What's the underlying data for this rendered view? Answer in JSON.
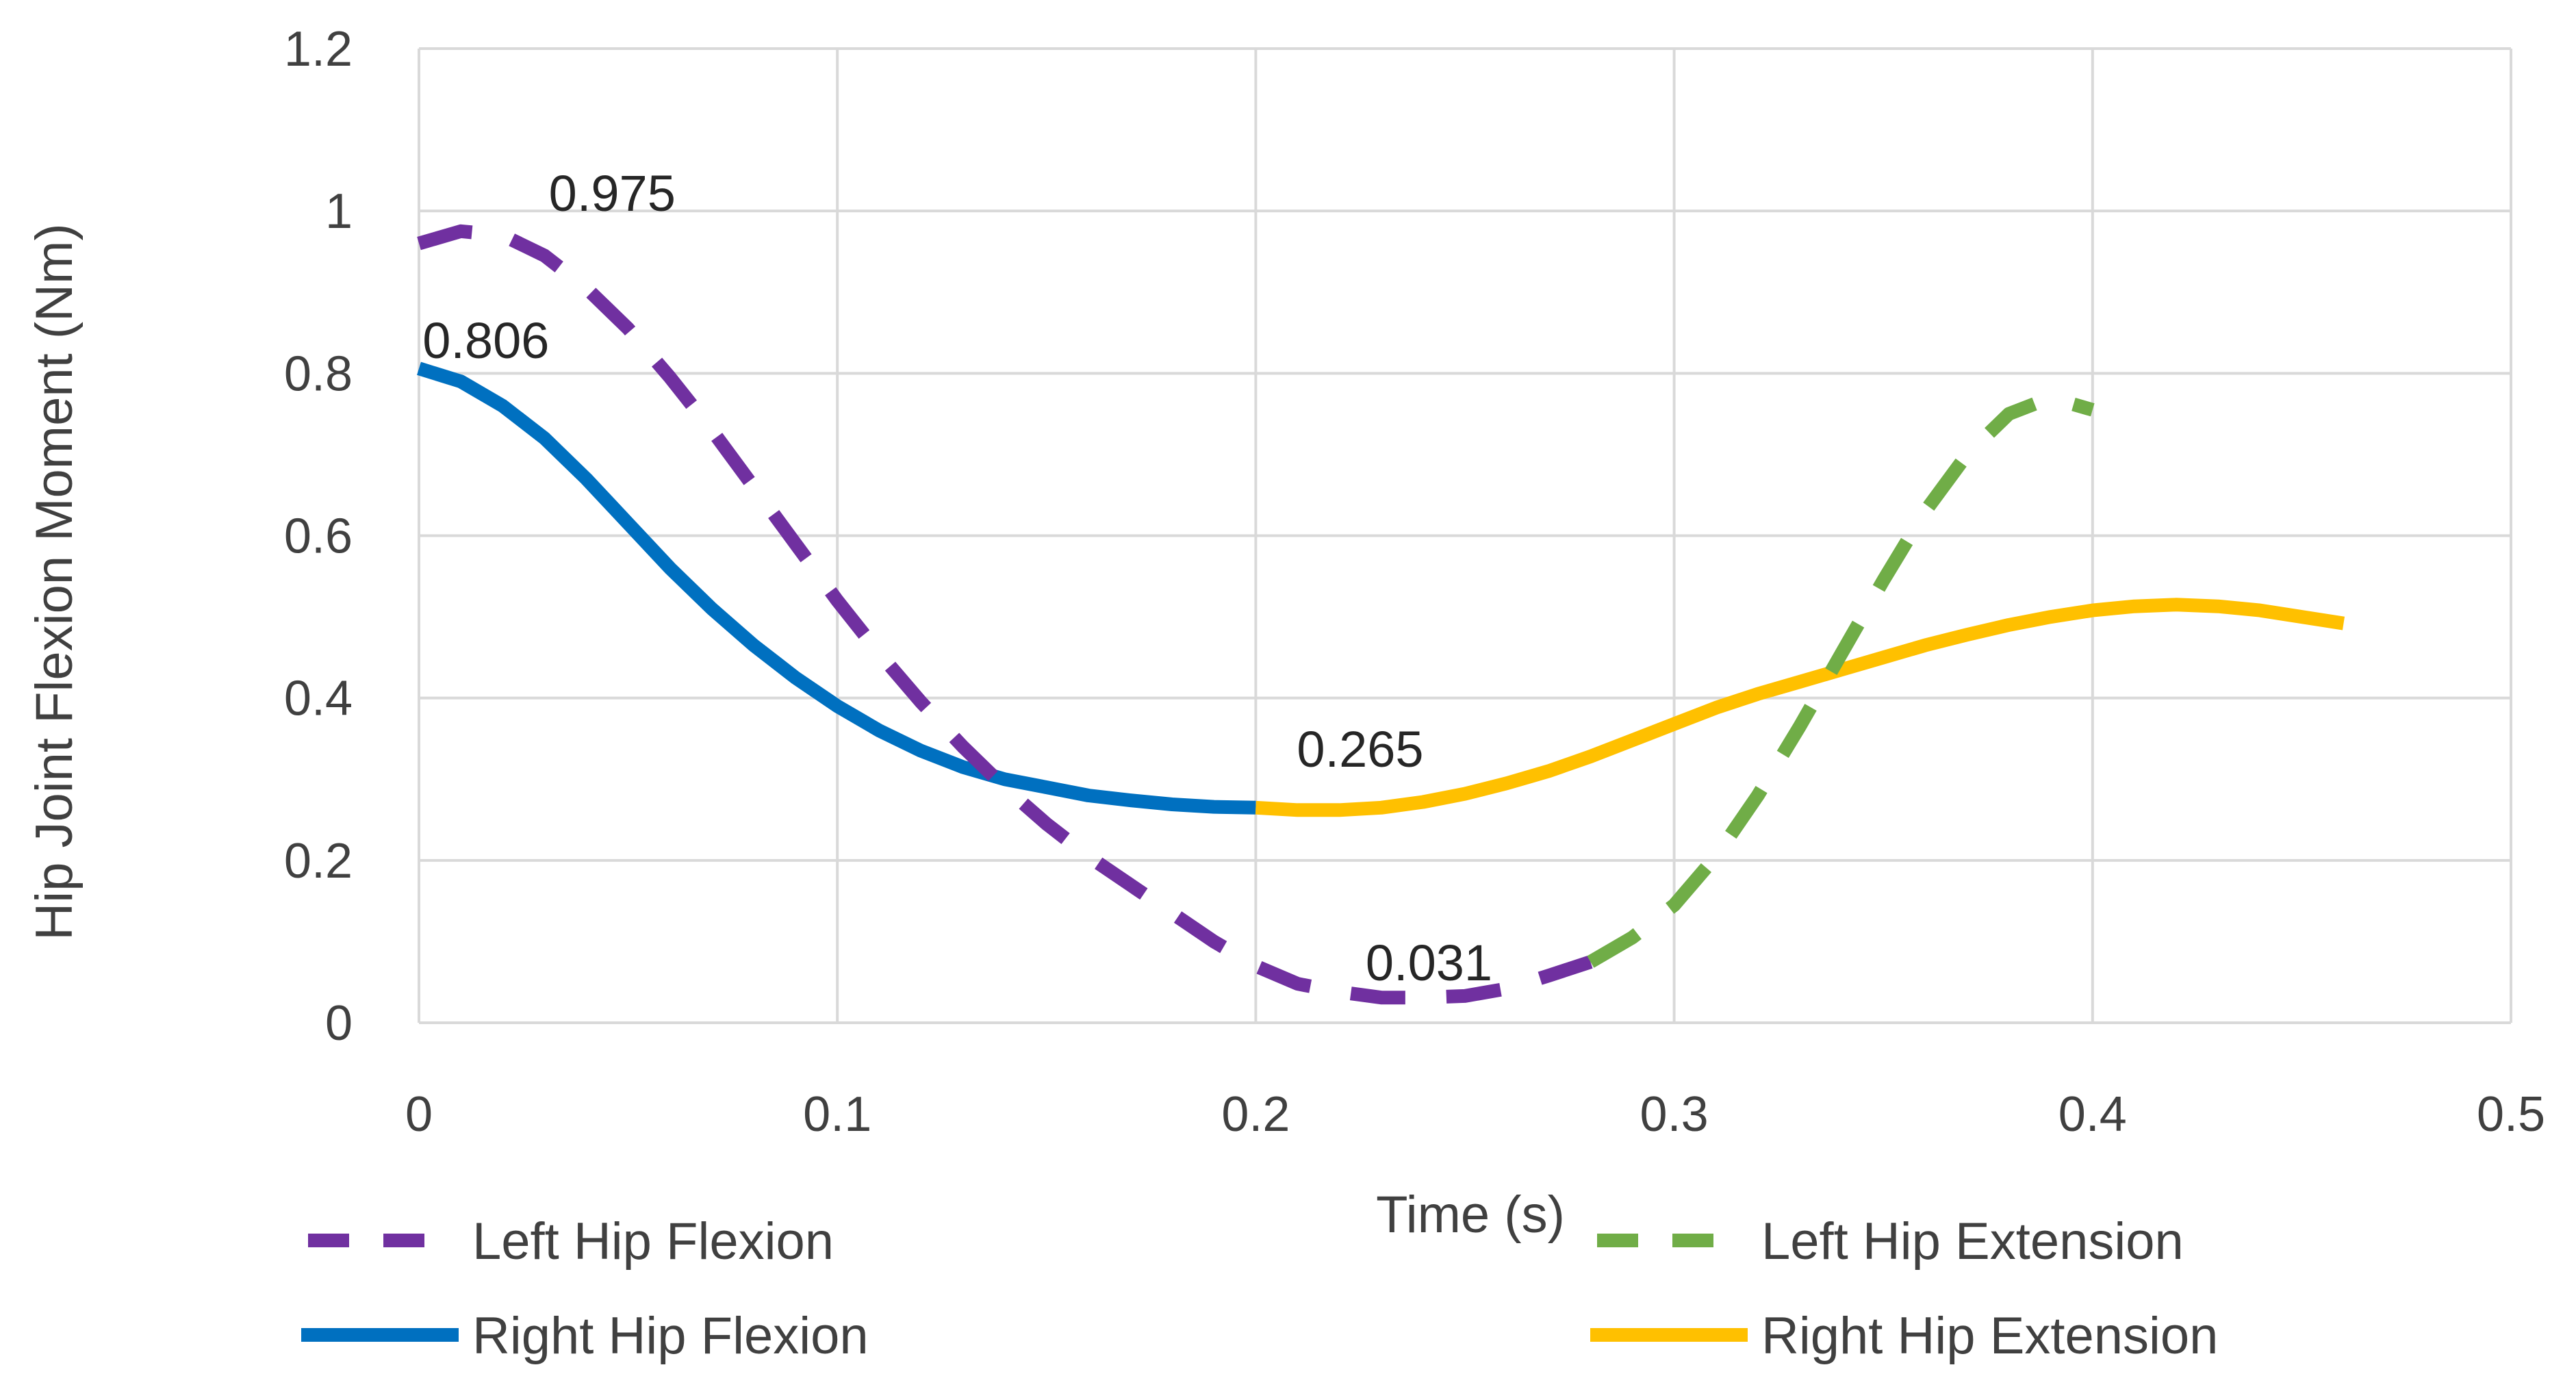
{
  "chart_data": {
    "type": "line",
    "title": "",
    "xlabel": "Time (s)",
    "ylabel": "Hip Joint Flexion Moment (Nm)",
    "xlim": [
      0,
      0.5
    ],
    "ylim": [
      0,
      1.2
    ],
    "x_ticks": [
      0,
      0.1,
      0.2,
      0.3,
      0.4,
      0.5
    ],
    "x_tick_labels": [
      "0",
      "0.1",
      "0.2",
      "0.3",
      "0.4",
      "0.5"
    ],
    "y_ticks": [
      0,
      0.2,
      0.4,
      0.6,
      0.8,
      1.0,
      1.2
    ],
    "y_tick_labels": [
      "0",
      "0.2",
      "0.4",
      "0.6",
      "0.8",
      "1",
      "1.2"
    ],
    "grid": true,
    "legend_position": "bottom",
    "series": [
      {
        "name": "Left Hip Flexion",
        "color": "#7030A0",
        "style": "dashed",
        "x": [
          0,
          0.01,
          0.02,
          0.03,
          0.04,
          0.05,
          0.06,
          0.07,
          0.08,
          0.09,
          0.1,
          0.11,
          0.12,
          0.13,
          0.14,
          0.15,
          0.16,
          0.17,
          0.18,
          0.19,
          0.2,
          0.21,
          0.22,
          0.23,
          0.24,
          0.25,
          0.26,
          0.27,
          0.28
        ],
        "values": [
          0.96,
          0.975,
          0.97,
          0.945,
          0.905,
          0.855,
          0.795,
          0.73,
          0.66,
          0.59,
          0.52,
          0.455,
          0.395,
          0.34,
          0.29,
          0.245,
          0.205,
          0.17,
          0.135,
          0.1,
          0.07,
          0.048,
          0.038,
          0.031,
          0.031,
          0.033,
          0.042,
          0.058,
          0.075
        ]
      },
      {
        "name": "Left Hip Extension",
        "color": "#70AD47",
        "style": "dashed",
        "x": [
          0.28,
          0.29,
          0.3,
          0.31,
          0.32,
          0.33,
          0.34,
          0.35,
          0.36,
          0.37,
          0.38,
          0.39,
          0.4
        ],
        "values": [
          0.075,
          0.105,
          0.145,
          0.205,
          0.28,
          0.365,
          0.455,
          0.545,
          0.63,
          0.7,
          0.75,
          0.77,
          0.755
        ]
      },
      {
        "name": "Right Hip Flexion",
        "color": "#0070C0",
        "style": "solid",
        "x": [
          0,
          0.01,
          0.02,
          0.03,
          0.04,
          0.05,
          0.06,
          0.07,
          0.08,
          0.09,
          0.1,
          0.11,
          0.12,
          0.13,
          0.14,
          0.15,
          0.16,
          0.17,
          0.18,
          0.19,
          0.2
        ],
        "values": [
          0.806,
          0.79,
          0.76,
          0.72,
          0.67,
          0.615,
          0.56,
          0.51,
          0.465,
          0.425,
          0.39,
          0.36,
          0.335,
          0.315,
          0.3,
          0.29,
          0.28,
          0.274,
          0.269,
          0.266,
          0.265
        ]
      },
      {
        "name": "Right Hip Extension",
        "color": "#FFC000",
        "style": "solid",
        "x": [
          0.2,
          0.21,
          0.22,
          0.23,
          0.24,
          0.25,
          0.26,
          0.27,
          0.28,
          0.29,
          0.3,
          0.31,
          0.32,
          0.33,
          0.34,
          0.35,
          0.36,
          0.37,
          0.38,
          0.39,
          0.4,
          0.41,
          0.42,
          0.43,
          0.44,
          0.45,
          0.46
        ],
        "values": [
          0.265,
          0.262,
          0.262,
          0.265,
          0.272,
          0.282,
          0.295,
          0.31,
          0.328,
          0.348,
          0.368,
          0.388,
          0.405,
          0.42,
          0.435,
          0.45,
          0.465,
          0.478,
          0.49,
          0.5,
          0.508,
          0.513,
          0.515,
          0.513,
          0.508,
          0.5,
          0.492
        ]
      }
    ],
    "annotations": [
      {
        "text": "0.975",
        "x": 0.015,
        "y": 0.975
      },
      {
        "text": "0.806",
        "x": 0.002,
        "y": 0.806
      },
      {
        "text": "0.265",
        "x": 0.2,
        "y": 0.265
      },
      {
        "text": "0.031",
        "x": 0.24,
        "y": 0.031
      }
    ]
  }
}
